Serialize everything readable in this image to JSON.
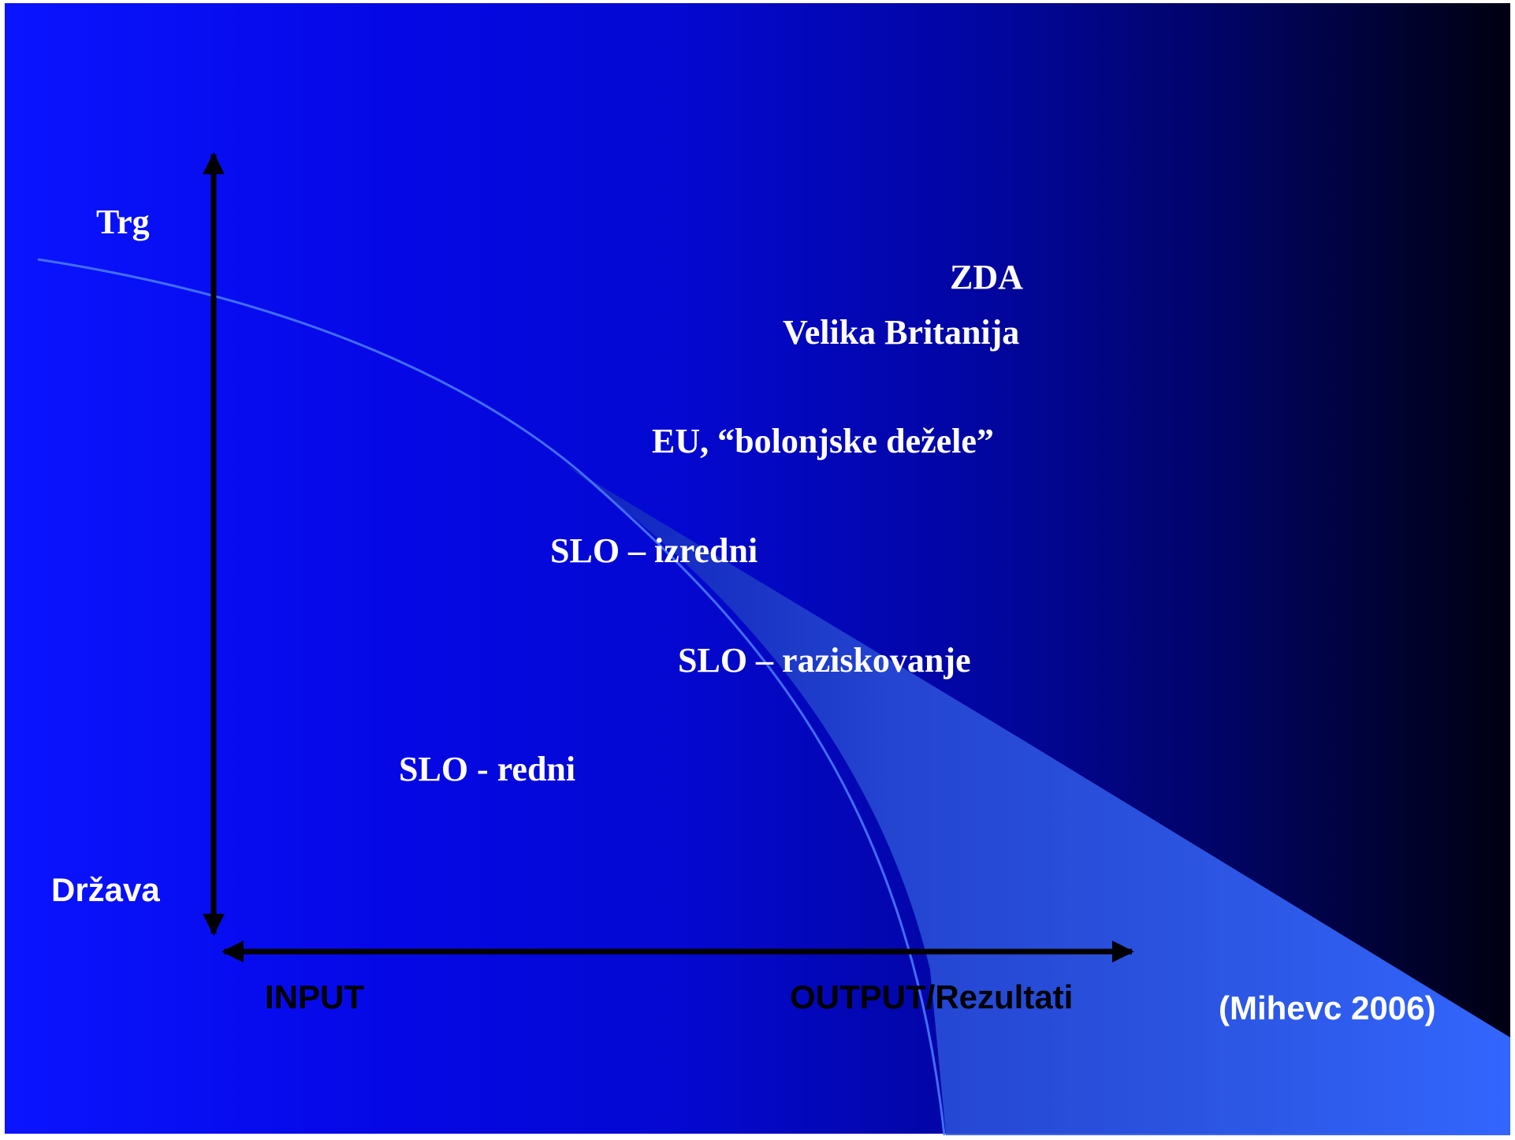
{
  "axes": {
    "y_top_label": "Trg",
    "y_bottom_label": "Država",
    "x_left_label": "INPUT",
    "x_right_label": "OUTPUT/Rezultati"
  },
  "categories": [
    {
      "key": "zda",
      "label": "ZDA"
    },
    {
      "key": "uk",
      "label": "Velika Britanija"
    },
    {
      "key": "eu",
      "label": "EU, “bolonjske dežele”"
    },
    {
      "key": "slo_izredni",
      "label": "SLO – izredni"
    },
    {
      "key": "slo_raziskovanje",
      "label": "SLO – raziskovanje"
    },
    {
      "key": "slo_redni",
      "label": "SLO - redni"
    }
  ],
  "source": "(Mihevc 2006)",
  "colors": {
    "background_left": "#0a14ff",
    "background_right": "#000010",
    "curve": "#3a6cff",
    "wedge": "#3366ff",
    "axis": "#000000",
    "text": "#ffffff"
  }
}
